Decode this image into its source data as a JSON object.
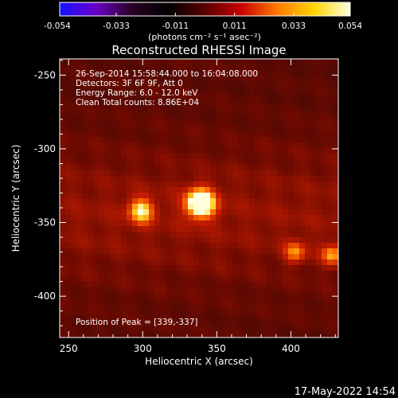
{
  "colorbar": {
    "ticks": [
      "-0.054",
      "-0.033",
      "-0.011",
      "0.011",
      "0.033",
      "0.054"
    ],
    "min": -0.054,
    "max": 0.054,
    "unit_label": "(photons cm⁻² s⁻¹ asec⁻²)",
    "colors": [
      "#1414ff",
      "#6a00c8",
      "#2a0022",
      "#000000",
      "#5a0000",
      "#c80000",
      "#ff7a00",
      "#ffd400",
      "#ffffe0"
    ]
  },
  "chart_data": {
    "type": "heatmap",
    "title": "Reconstructed RHESSI Image",
    "xlabel": "Heliocentric X (arcsec)",
    "ylabel": "Heliocentric Y (arcsec)",
    "xlim": [
      244,
      432
    ],
    "ylim": [
      -428,
      -239
    ],
    "xticks": [
      250,
      300,
      350,
      400
    ],
    "yticks": [
      -250,
      -300,
      -350,
      -400
    ],
    "peak": {
      "x": 339,
      "y": -337
    },
    "sources": [
      {
        "x": 339,
        "y": -337,
        "sigma": 7,
        "amp": 1.0
      },
      {
        "x": 299,
        "y": -342,
        "sigma": 6,
        "amp": 0.62
      },
      {
        "x": 403,
        "y": -370,
        "sigma": 5,
        "amp": 0.45
      },
      {
        "x": 428,
        "y": -372,
        "sigma": 5,
        "amp": 0.5
      }
    ],
    "info_lines": [
      "26-Sep-2014 15:58:44.000 to 16:04:08.000",
      "Detectors: 3F 6F 9F, Att 0",
      "Energy Range: 6.0 - 12.0 keV",
      "Clean     Total counts: 8.86E+04"
    ],
    "peak_label": "Position of Peak = [339,-337]"
  },
  "footer": {
    "timestamp": "17-May-2022 14:54"
  }
}
